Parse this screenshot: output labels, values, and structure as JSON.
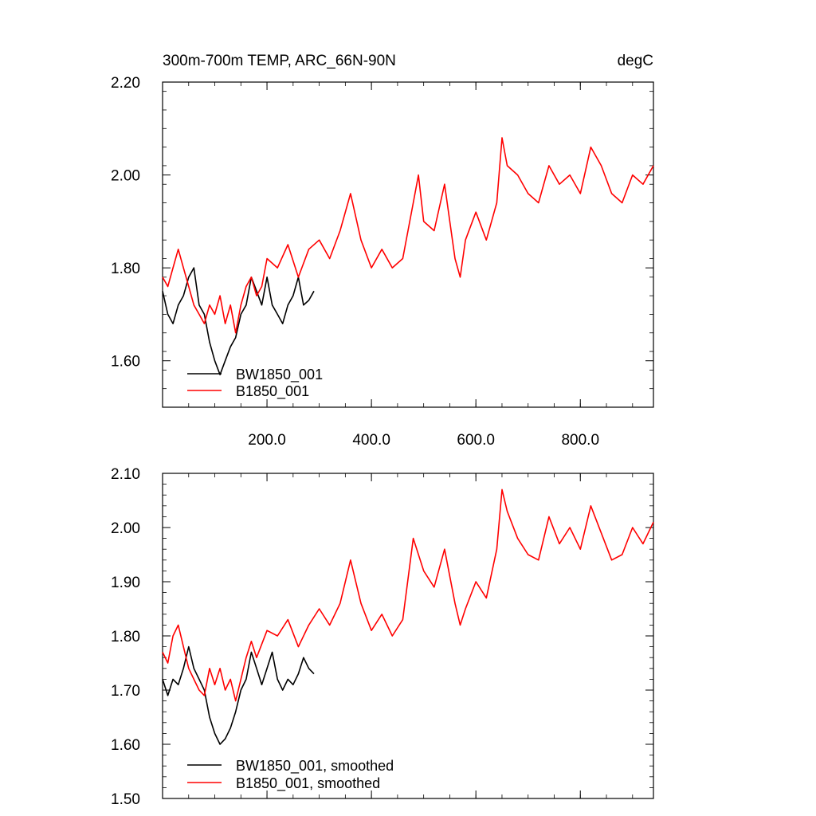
{
  "chart_data": [
    {
      "type": "line",
      "title_left": "300m-700m TEMP, ARC_66N-90N",
      "title_right": "degC",
      "xlim": [
        0,
        940
      ],
      "ylim": [
        1.5,
        2.2
      ],
      "yticks": [
        1.6,
        1.8,
        2.0,
        2.2
      ],
      "ytick_labels": [
        "1.60",
        "1.80",
        "2.00",
        "2.20"
      ],
      "xticks": [
        200,
        400,
        600,
        800
      ],
      "xtick_labels": [
        "200.0",
        "400.0",
        "600.0",
        "800.0"
      ],
      "legend_position": "lower-left",
      "series": [
        {
          "name": "BW1850_001",
          "color": "#000000",
          "x": [
            0,
            10,
            20,
            30,
            40,
            50,
            60,
            70,
            80,
            90,
            100,
            110,
            120,
            130,
            140,
            150,
            160,
            170,
            180,
            190,
            200,
            210,
            220,
            230,
            240,
            250,
            260,
            270,
            280,
            290
          ],
          "y": [
            1.75,
            1.7,
            1.68,
            1.72,
            1.74,
            1.78,
            1.8,
            1.72,
            1.7,
            1.64,
            1.6,
            1.57,
            1.6,
            1.63,
            1.65,
            1.7,
            1.72,
            1.78,
            1.75,
            1.72,
            1.78,
            1.72,
            1.7,
            1.68,
            1.72,
            1.74,
            1.78,
            1.72,
            1.73,
            1.75
          ]
        },
        {
          "name": "B1850_001",
          "color": "#ff0000",
          "x": [
            0,
            10,
            20,
            30,
            40,
            50,
            60,
            70,
            80,
            90,
            100,
            110,
            120,
            130,
            140,
            150,
            160,
            170,
            180,
            190,
            200,
            220,
            240,
            260,
            280,
            300,
            320,
            340,
            360,
            380,
            400,
            420,
            440,
            460,
            480,
            490,
            500,
            520,
            540,
            560,
            570,
            580,
            600,
            620,
            640,
            650,
            660,
            680,
            700,
            720,
            740,
            760,
            780,
            800,
            820,
            840,
            860,
            880,
            900,
            920,
            940
          ],
          "y": [
            1.78,
            1.76,
            1.8,
            1.84,
            1.8,
            1.76,
            1.72,
            1.7,
            1.68,
            1.72,
            1.7,
            1.74,
            1.68,
            1.72,
            1.66,
            1.72,
            1.76,
            1.78,
            1.74,
            1.76,
            1.82,
            1.8,
            1.85,
            1.78,
            1.84,
            1.86,
            1.82,
            1.88,
            1.96,
            1.86,
            1.8,
            1.84,
            1.8,
            1.82,
            1.94,
            2.0,
            1.9,
            1.88,
            1.98,
            1.82,
            1.78,
            1.86,
            1.92,
            1.86,
            1.94,
            2.08,
            2.02,
            2.0,
            1.96,
            1.94,
            2.02,
            1.98,
            2.0,
            1.96,
            2.06,
            2.02,
            1.96,
            1.94,
            2.0,
            1.98,
            2.02
          ]
        }
      ]
    },
    {
      "type": "line",
      "xlim": [
        0,
        940
      ],
      "ylim": [
        1.5,
        2.1
      ],
      "yticks": [
        1.5,
        1.6,
        1.7,
        1.8,
        1.9,
        2.0,
        2.1
      ],
      "ytick_labels": [
        "1.50",
        "1.60",
        "1.70",
        "1.80",
        "1.90",
        "2.00",
        "2.10"
      ],
      "xticks": [
        200,
        400,
        600,
        800
      ],
      "legend_position": "lower-left",
      "series": [
        {
          "name": "BW1850_001, smoothed",
          "color": "#000000",
          "x": [
            0,
            10,
            20,
            30,
            40,
            50,
            60,
            70,
            80,
            90,
            100,
            110,
            120,
            130,
            140,
            150,
            160,
            170,
            180,
            190,
            200,
            210,
            220,
            230,
            240,
            250,
            260,
            270,
            280,
            290
          ],
          "y": [
            1.72,
            1.69,
            1.72,
            1.71,
            1.74,
            1.78,
            1.74,
            1.72,
            1.7,
            1.65,
            1.62,
            1.6,
            1.61,
            1.63,
            1.66,
            1.7,
            1.72,
            1.77,
            1.74,
            1.71,
            1.74,
            1.77,
            1.72,
            1.7,
            1.72,
            1.71,
            1.73,
            1.76,
            1.74,
            1.73
          ]
        },
        {
          "name": "B1850_001, smoothed",
          "color": "#ff0000",
          "x": [
            0,
            10,
            20,
            30,
            40,
            50,
            60,
            70,
            80,
            90,
            100,
            110,
            120,
            130,
            140,
            150,
            160,
            170,
            180,
            200,
            220,
            240,
            260,
            280,
            300,
            320,
            340,
            360,
            380,
            400,
            420,
            440,
            460,
            480,
            500,
            520,
            540,
            560,
            570,
            580,
            600,
            620,
            640,
            650,
            660,
            680,
            700,
            720,
            740,
            760,
            780,
            800,
            820,
            840,
            860,
            880,
            900,
            920,
            940
          ],
          "y": [
            1.77,
            1.75,
            1.8,
            1.82,
            1.78,
            1.74,
            1.72,
            1.7,
            1.69,
            1.74,
            1.71,
            1.74,
            1.7,
            1.72,
            1.68,
            1.72,
            1.76,
            1.79,
            1.76,
            1.81,
            1.8,
            1.83,
            1.78,
            1.82,
            1.85,
            1.82,
            1.86,
            1.94,
            1.86,
            1.81,
            1.84,
            1.8,
            1.83,
            1.98,
            1.92,
            1.89,
            1.96,
            1.86,
            1.82,
            1.85,
            1.9,
            1.87,
            1.96,
            2.07,
            2.03,
            1.98,
            1.95,
            1.94,
            2.02,
            1.97,
            2.0,
            1.96,
            2.04,
            1.99,
            1.94,
            1.95,
            2.0,
            1.97,
            2.01
          ]
        }
      ]
    }
  ]
}
